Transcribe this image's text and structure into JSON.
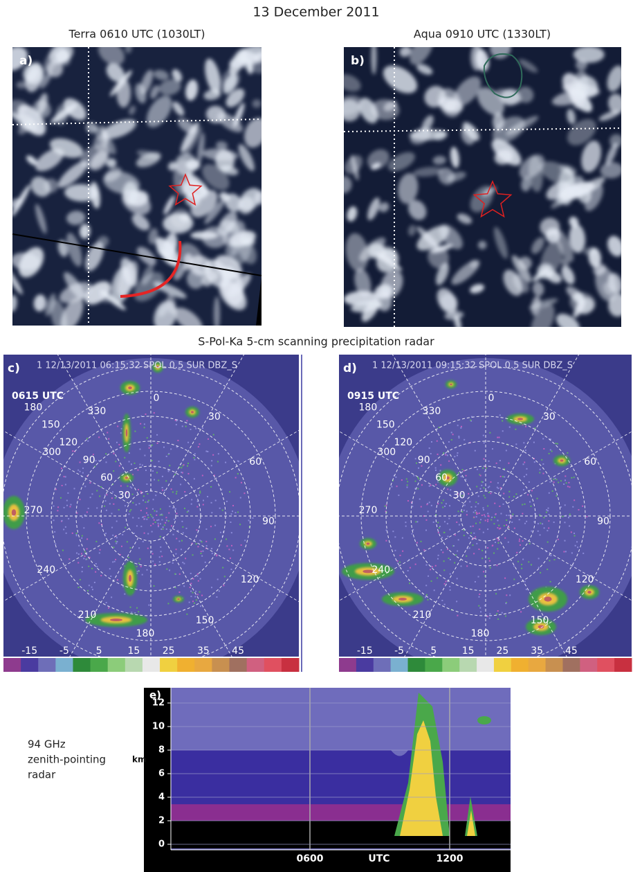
{
  "title": "13 December 2011",
  "satellite_panels": [
    {
      "label": "a)",
      "caption": "Terra 0610 UTC (1030LT)"
    },
    {
      "label": "b)",
      "caption": "Aqua 0910 UTC (1330LT)"
    }
  ],
  "radar_section_title": "S-Pol-Ka 5-cm scanning precipitation radar",
  "radar_panels": [
    {
      "label": "c)",
      "header": "1 12/13/2011 06:15:32 SPOL 0.5 SUR DBZ_S",
      "time": "0615 UTC"
    },
    {
      "label": "d)",
      "header": "1 12/13/2011 09:15:32 SPOL 0.5 SUR DBZ_S",
      "time": "0915 UTC"
    }
  ],
  "radar_range_labels": [
    30,
    60,
    90,
    120,
    150,
    180
  ],
  "radar_azimuth_labels": [
    0,
    30,
    60,
    90,
    120,
    150,
    180,
    210,
    240,
    270,
    300,
    330
  ],
  "colorbar_labels": [
    -15,
    -5,
    5,
    15,
    25,
    35,
    45
  ],
  "zenith": {
    "label": "e)",
    "caption_lines": [
      "94 GHz",
      "zenith-pointing",
      "radar"
    ],
    "y_axis_label": "km",
    "yticks": [
      0,
      2,
      4,
      6,
      8,
      10,
      12
    ],
    "xticks": [
      "0600",
      "1200"
    ],
    "x_axis_label": "UTC"
  }
}
